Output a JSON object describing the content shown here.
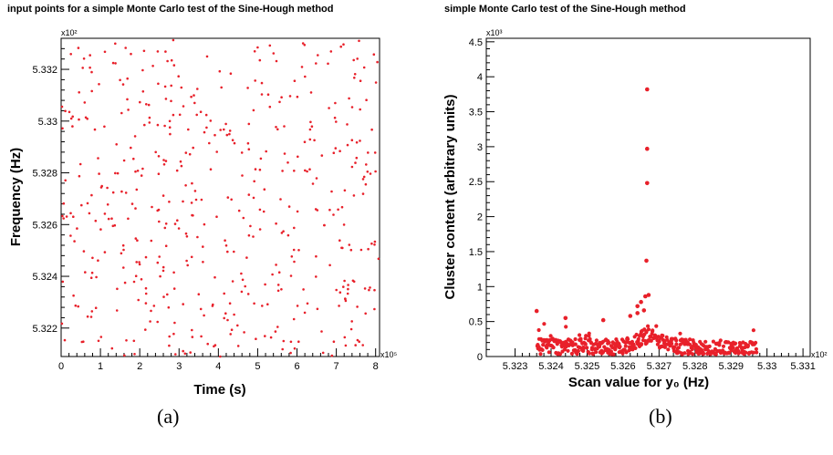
{
  "chart_data": [
    {
      "type": "scatter",
      "title": "input points for a simple Monte Carlo test of the Sine-Hough method",
      "xlabel": "Time (s)",
      "ylabel": "Frequency (Hz)",
      "x_exponent": "x10⁵",
      "y_exponent": "x10²",
      "xlim": [
        0,
        8.1
      ],
      "ylim": [
        5.3209,
        5.3332
      ],
      "xticks": [
        "0",
        "1",
        "2",
        "3",
        "4",
        "5",
        "6",
        "7",
        "8"
      ],
      "yticks": [
        "5.322",
        "5.324",
        "5.326",
        "5.328",
        "5.33",
        "5.332"
      ],
      "n_points": 500,
      "point_color": "#e8202a",
      "grid": false,
      "legend": "none",
      "caption": "(a)"
    },
    {
      "type": "scatter",
      "title": "simple Monte Carlo test of the Sine-Hough method",
      "xlabel": "Scan value for y₀ (Hz)",
      "ylabel": "Cluster content    (arbitrary units)",
      "x_exponent": "x10²",
      "y_exponent": "x10³",
      "xlim": [
        5.3222,
        5.3312
      ],
      "ylim": [
        0,
        4.55
      ],
      "xticks": [
        "5.323",
        "5.324",
        "5.325",
        "5.326",
        "5.327",
        "5.328",
        "5.329",
        "5.33",
        "5.331"
      ],
      "yticks": [
        "0",
        "0.5",
        "1",
        "1.5",
        "2",
        "2.5",
        "3",
        "3.5",
        "4",
        "4.5"
      ],
      "scan_range": [
        5.3236,
        5.3297
      ],
      "baseline_level": 0.2,
      "peak_x": 5.3267,
      "peak_points": [
        {
          "x": 5.32667,
          "y": 3.82
        },
        {
          "x": 5.32667,
          "y": 2.97
        },
        {
          "x": 5.32667,
          "y": 2.48
        },
        {
          "x": 5.32665,
          "y": 1.37
        },
        {
          "x": 5.32662,
          "y": 0.86
        },
        {
          "x": 5.32671,
          "y": 0.88
        },
        {
          "x": 5.3265,
          "y": 0.78
        },
        {
          "x": 5.3264,
          "y": 0.72
        },
        {
          "x": 5.32658,
          "y": 0.66
        },
        {
          "x": 5.3264,
          "y": 0.62
        },
        {
          "x": 5.3236,
          "y": 0.65
        },
        {
          "x": 5.3244,
          "y": 0.55
        },
        {
          "x": 5.32545,
          "y": 0.52
        },
        {
          "x": 5.3262,
          "y": 0.58
        }
      ],
      "point_color": "#e8202a",
      "grid": false,
      "legend": "none",
      "caption": "(b)"
    }
  ]
}
